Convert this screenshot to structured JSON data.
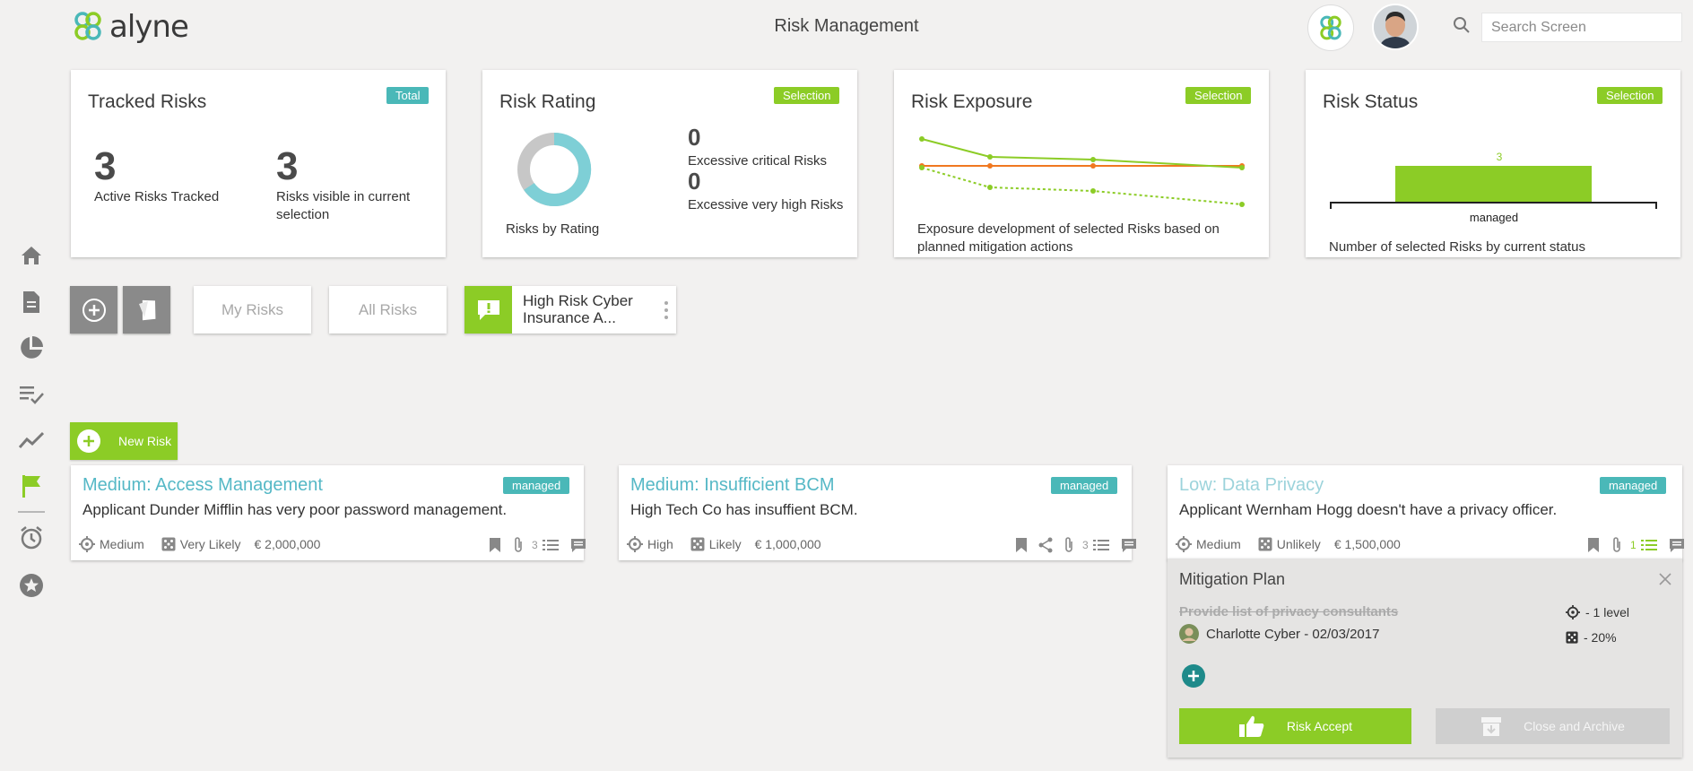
{
  "header": {
    "logo_text": "alyne",
    "title": "Risk Management",
    "search_placeholder": "Search Screen"
  },
  "summary": {
    "tracked": {
      "title": "Tracked Risks",
      "badge": "Total",
      "active_count": "3",
      "active_label": "Active Risks Tracked",
      "visible_count": "3",
      "visible_label_1": "Risks visible in current",
      "visible_label_2": "selection"
    },
    "rating": {
      "title": "Risk Rating",
      "badge": "Selection",
      "donut_caption": "Risks by Rating",
      "critical_count": "0",
      "critical_label": "Excessive critical Risks",
      "veryhigh_count": "0",
      "veryhigh_label": "Excessive very high Risks"
    },
    "exposure": {
      "title": "Risk Exposure",
      "badge": "Selection",
      "caption_1": "Exposure development of selected Risks based on",
      "caption_2": "planned mitigation actions"
    },
    "status": {
      "title": "Risk Status",
      "badge": "Selection",
      "bar_value": "3",
      "bar_label": "managed",
      "caption": "Number of selected Risks by current status"
    }
  },
  "filters": {
    "my_risks": "My Risks",
    "all_risks": "All Risks",
    "saved_filter_1": "High Risk Cyber",
    "saved_filter_2": "Insurance A..."
  },
  "new_risk_label": "New Risk",
  "risks": [
    {
      "title": "Medium: Access Management",
      "badge": "managed",
      "description": "Applicant Dunder Mifflin has very poor password management.",
      "impact": "Medium",
      "likelihood": "Very Likely",
      "amount": "€ 2,000,000",
      "task_count": "3"
    },
    {
      "title": "Medium: Insufficient BCM",
      "badge": "managed",
      "description": "High Tech Co has insuffient BCM.",
      "impact": "High",
      "likelihood": "Likely",
      "amount": "€ 1,000,000",
      "task_count": "3"
    },
    {
      "title": "Low: Data Privacy",
      "badge": "managed",
      "description": "Applicant Wernham Hogg doesn't have a privacy officer.",
      "impact": "Medium",
      "likelihood": "Unlikely",
      "amount": "€ 1,500,000",
      "task_count": "1"
    }
  ],
  "mitigation": {
    "title": "Mitigation Plan",
    "action": "Provide list of privacy consultants",
    "assignee": "Charlotte Cyber - 02/03/2017",
    "impact_change": "- 1 level",
    "likelihood_change": "- 20%",
    "accept_label": "Risk Accept",
    "archive_label": "Close and Archive"
  },
  "colors": {
    "accent_green": "#8ccc26",
    "teal": "#4ab8b8",
    "link_blue": "#55b8c6",
    "exposure_orange": "#f07820"
  }
}
